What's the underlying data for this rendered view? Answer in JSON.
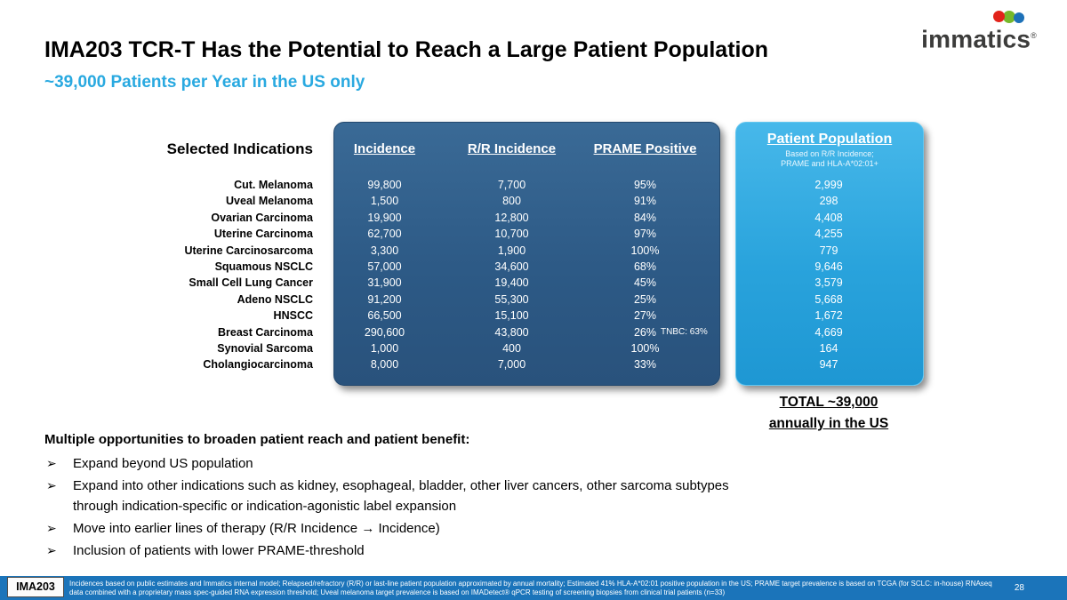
{
  "colors": {
    "accent_blue": "#29A9E0",
    "dark_box": "#2D5A86",
    "light_box": "#29A3DC",
    "footer_bar": "#1B74BA",
    "logo_red": "#E2231A",
    "logo_green": "#76B82A",
    "logo_blue": "#1D71B8"
  },
  "slide": {
    "title": "IMA203 TCR-T Has the Potential to Reach a Large Patient Population",
    "subtitle": "~39,000 Patients per Year in the US only",
    "brand": {
      "logo_text": "immatics",
      "registered_mark": "®"
    }
  },
  "table": {
    "left_header": "Selected Indications",
    "column_headers": [
      "Incidence",
      "R/R Incidence",
      "PRAME Positive"
    ],
    "population_box": {
      "header": "Patient Population",
      "subheader_line1": "Based on R/R Incidence;",
      "subheader_line2": "PRAME and HLA-A*02:01+"
    },
    "rows": [
      {
        "indication": "Cut. Melanoma",
        "incidence": "99,800",
        "rr_incidence": "7,700",
        "prame_positive": "95%",
        "patient_population": "2,999"
      },
      {
        "indication": "Uveal Melanoma",
        "incidence": "1,500",
        "rr_incidence": "800",
        "prame_positive": "91%",
        "patient_population": "298"
      },
      {
        "indication": "Ovarian Carcinoma",
        "incidence": "19,900",
        "rr_incidence": "12,800",
        "prame_positive": "84%",
        "patient_population": "4,408"
      },
      {
        "indication": "Uterine Carcinoma",
        "incidence": "62,700",
        "rr_incidence": "10,700",
        "prame_positive": "97%",
        "patient_population": "4,255"
      },
      {
        "indication": "Uterine Carcinosarcoma",
        "incidence": "3,300",
        "rr_incidence": "1,900",
        "prame_positive": "100%",
        "patient_population": "779"
      },
      {
        "indication": "Squamous NSCLC",
        "incidence": "57,000",
        "rr_incidence": "34,600",
        "prame_positive": "68%",
        "patient_population": "9,646"
      },
      {
        "indication": "Small Cell Lung Cancer",
        "incidence": "31,900",
        "rr_incidence": "19,400",
        "prame_positive": "45%",
        "patient_population": "3,579"
      },
      {
        "indication": "Adeno NSCLC",
        "incidence": "91,200",
        "rr_incidence": "55,300",
        "prame_positive": "25%",
        "patient_population": "5,668"
      },
      {
        "indication": "HNSCC",
        "incidence": "66,500",
        "rr_incidence": "15,100",
        "prame_positive": "27%",
        "patient_population": "1,672"
      },
      {
        "indication": "Breast Carcinoma",
        "incidence": "290,600",
        "rr_incidence": "43,800",
        "prame_positive": "26%",
        "prame_note": "TNBC: 63%",
        "patient_population": "4,669"
      },
      {
        "indication": "Synovial Sarcoma",
        "incidence": "1,000",
        "rr_incidence": "400",
        "prame_positive": "100%",
        "patient_population": "164"
      },
      {
        "indication": "Cholangiocarcinoma",
        "incidence": "8,000",
        "rr_incidence": "7,000",
        "prame_positive": "33%",
        "patient_population": "947"
      }
    ],
    "total_line1": "TOTAL ~39,000",
    "total_line2": "annually in the US"
  },
  "opportunities": {
    "heading": "Multiple opportunities to broaden patient reach and patient benefit:",
    "bullet_glyph": "➢",
    "items": [
      "Expand beyond US population",
      "Expand into other indications such as kidney, esophageal, bladder, other liver cancers, other sarcoma subtypes through indication-specific or indication-agonistic label expansion",
      "Move into earlier lines of therapy (R/R Incidence → Incidence)",
      "Inclusion of patients with lower PRAME-threshold"
    ]
  },
  "footer": {
    "program_label": "IMA203",
    "footnote": "Incidences based on public estimates and Immatics internal model; Relapsed/refractory (R/R) or last-line patient population approximated by annual mortality; Estimated 41% HLA-A*02:01 positive population in the US; PRAME target prevalence is based on TCGA (for SCLC: in-house) RNAseq data combined with a proprietary mass spec-guided RNA expression threshold; Uveal melanoma target prevalence is based on IMADetect® qPCR testing of screening biopsies from clinical trial patients (n=33)",
    "page_number": "28"
  }
}
